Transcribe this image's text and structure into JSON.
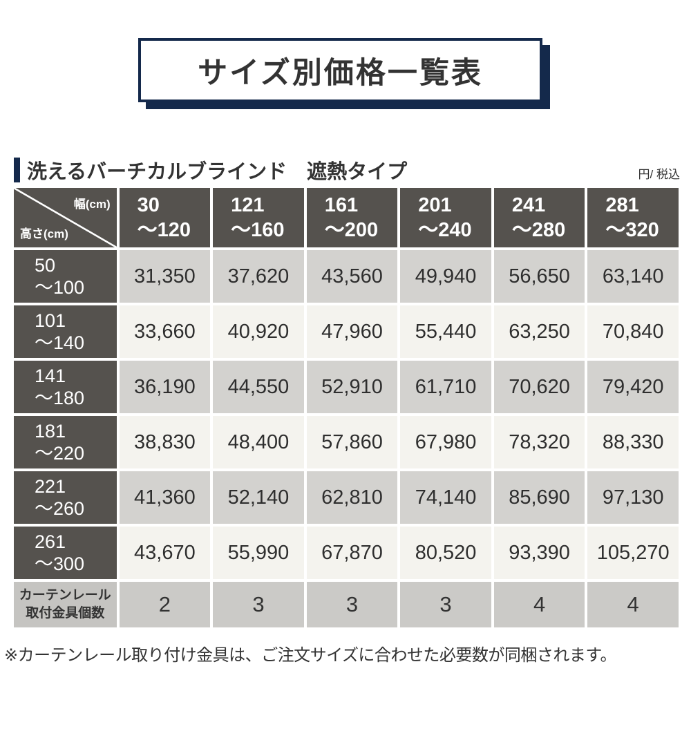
{
  "title": "サイズ別価格一覧表",
  "subtitle": {
    "label": "洗えるバーチカルブラインド　遮熱タイプ",
    "unit_note": "円/ 税込"
  },
  "table": {
    "corner": {
      "width_label": "幅(cm)",
      "height_label": "高さ(cm)"
    },
    "columns": [
      {
        "line1": "30",
        "line2": "〜120"
      },
      {
        "line1": "121",
        "line2": "〜160"
      },
      {
        "line1": "161",
        "line2": "〜200"
      },
      {
        "line1": "201",
        "line2": "〜240"
      },
      {
        "line1": "241",
        "line2": "〜280"
      },
      {
        "line1": "281",
        "line2": "〜320"
      }
    ],
    "rows": [
      {
        "height_line1": "50",
        "height_line2": "〜100",
        "prices": [
          "31,350",
          "37,620",
          "43,560",
          "49,940",
          "56,650",
          "63,140"
        ]
      },
      {
        "height_line1": "101",
        "height_line2": "〜140",
        "prices": [
          "33,660",
          "40,920",
          "47,960",
          "55,440",
          "63,250",
          "70,840"
        ]
      },
      {
        "height_line1": "141",
        "height_line2": "〜180",
        "prices": [
          "36,190",
          "44,550",
          "52,910",
          "61,710",
          "70,620",
          "79,420"
        ]
      },
      {
        "height_line1": "181",
        "height_line2": "〜220",
        "prices": [
          "38,830",
          "48,400",
          "57,860",
          "67,980",
          "78,320",
          "88,330"
        ]
      },
      {
        "height_line1": "221",
        "height_line2": "〜260",
        "prices": [
          "41,360",
          "52,140",
          "62,810",
          "74,140",
          "85,690",
          "97,130"
        ]
      },
      {
        "height_line1": "261",
        "height_line2": "〜300",
        "prices": [
          "43,670",
          "55,990",
          "67,870",
          "80,520",
          "93,390",
          "105,270"
        ]
      }
    ],
    "bracket_row": {
      "label_line1": "カーテンレール",
      "label_line2": "取付金具個数",
      "counts": [
        "2",
        "3",
        "3",
        "3",
        "4",
        "4"
      ]
    }
  },
  "footnote": "※カーテンレール取り付け金具は、ご注文サイズに合わせた必要数が同梱されます。",
  "colors": {
    "navy": "#14294b",
    "header_dark": "#55524e",
    "row_gray": "#d3d2cf",
    "row_cream": "#f4f3ee",
    "bracket_label_bg": "#c5c4c1",
    "bracket_value_bg": "#cbcac7",
    "text": "#333333"
  }
}
